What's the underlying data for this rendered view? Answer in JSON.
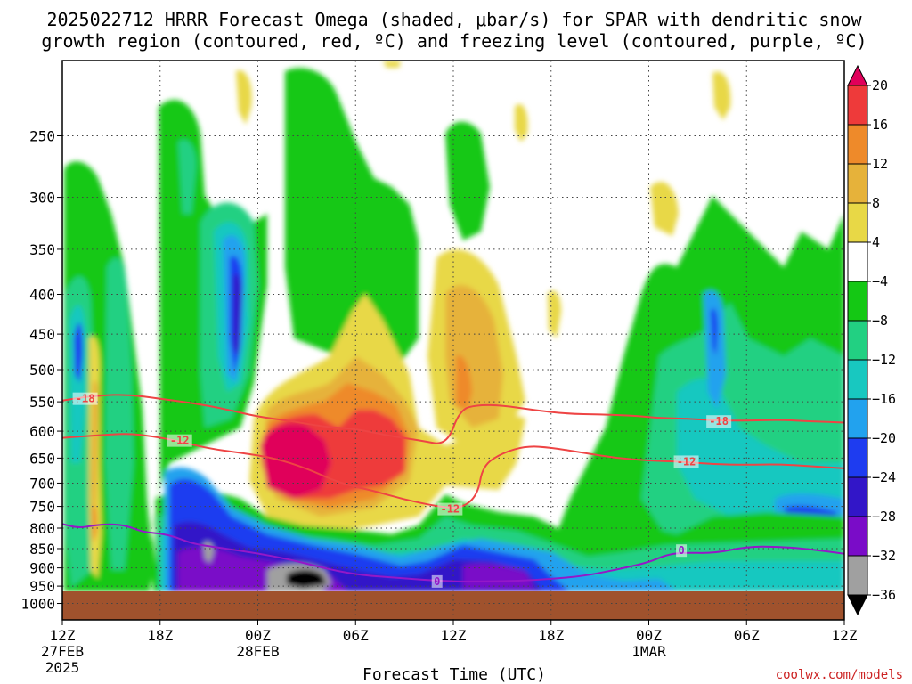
{
  "title_line1": "2025022712 HRRR Forecast Omega (shaded, μbar/s) for SPAR with dendritic snow",
  "title_line2": "growth region (contoured, red, ºC) and freezing level (contoured, purple, ºC)",
  "credit": "coolwx.com/models",
  "colors": {
    "dark_pink": "#e0005a",
    "red": "#ee3a3a",
    "orange": "#ee8a2a",
    "gold": "#e6b23a",
    "yellow": "#e8d846",
    "green": "#14c814",
    "mint": "#22d082",
    "teal": "#18c8c0",
    "sky": "#22a2ee",
    "blue": "#1e3cf0",
    "dark_blue": "#3216c8",
    "purple": "#7a0cc8",
    "grey": "#a0a0a0",
    "black": "#000000",
    "ground": "#a0522d",
    "contour_red": "#ee4444",
    "contour_purple": "#9418c8"
  },
  "chart_data": {
    "type": "heatmap",
    "title": "2025022712 HRRR Forecast Omega (shaded, μbar/s) for SPAR with dendritic snow growth region (contoured, red, ºC) and freezing level (contoured, purple, ºC)",
    "xlabel": "Forecast Time (UTC)",
    "ylabel": "",
    "x_ticks": [
      {
        "hour": 0,
        "label": "12Z",
        "sub1": "27FEB",
        "sub2": "2025"
      },
      {
        "hour": 6,
        "label": "18Z",
        "sub1": "",
        "sub2": ""
      },
      {
        "hour": 12,
        "label": "00Z",
        "sub1": "28FEB",
        "sub2": ""
      },
      {
        "hour": 18,
        "label": "06Z",
        "sub1": "",
        "sub2": ""
      },
      {
        "hour": 24,
        "label": "12Z",
        "sub1": "",
        "sub2": ""
      },
      {
        "hour": 30,
        "label": "18Z",
        "sub1": "",
        "sub2": ""
      },
      {
        "hour": 36,
        "label": "00Z",
        "sub1": "1MAR",
        "sub2": ""
      },
      {
        "hour": 42,
        "label": "06Z",
        "sub1": "",
        "sub2": ""
      },
      {
        "hour": 48,
        "label": "12Z",
        "sub1": "",
        "sub2": ""
      }
    ],
    "xlim": [
      0,
      48
    ],
    "y_ticks": [
      "250",
      "300",
      "350",
      "400",
      "450",
      "500",
      "550",
      "600",
      "650",
      "700",
      "750",
      "800",
      "850",
      "900",
      "950",
      "1000"
    ],
    "y_scale": "log",
    "ylim": [
      1050,
      200
    ],
    "grid": true,
    "colorbar": {
      "unit": "μbar/s",
      "tick_labels": [
        "20",
        "16",
        "12",
        "8",
        "4",
        "−4",
        "−8",
        "−12",
        "−16",
        "−20",
        "−24",
        "−28",
        "−32",
        "−36"
      ],
      "bins": [
        {
          "from": 20,
          "to": null,
          "color": "#e0005a"
        },
        {
          "from": 16,
          "to": 20,
          "color": "#ee3a3a"
        },
        {
          "from": 12,
          "to": 16,
          "color": "#ee8a2a"
        },
        {
          "from": 8,
          "to": 12,
          "color": "#e6b23a"
        },
        {
          "from": 4,
          "to": 8,
          "color": "#e8d846"
        },
        {
          "from": -4,
          "to": 4,
          "color": "#ffffff"
        },
        {
          "from": -8,
          "to": -4,
          "color": "#14c814"
        },
        {
          "from": -12,
          "to": -8,
          "color": "#22d082"
        },
        {
          "from": -16,
          "to": -12,
          "color": "#18c8c0"
        },
        {
          "from": -20,
          "to": -16,
          "color": "#22a2ee"
        },
        {
          "from": -24,
          "to": -20,
          "color": "#1e3cf0"
        },
        {
          "from": -28,
          "to": -24,
          "color": "#3216c8"
        },
        {
          "from": -32,
          "to": -28,
          "color": "#7a0cc8"
        },
        {
          "from": -36,
          "to": -32,
          "color": "#a0a0a0"
        },
        {
          "from": null,
          "to": -36,
          "color": "#000000"
        }
      ]
    },
    "contours": [
      {
        "value": "-18",
        "color": "#ee4444",
        "label_at": [
          [
            1.4,
            545
          ],
          [
            40.3,
            583
          ]
        ],
        "points": [
          [
            0,
            548
          ],
          [
            2,
            540
          ],
          [
            4,
            538
          ],
          [
            6,
            545
          ],
          [
            8,
            552
          ],
          [
            10,
            562
          ],
          [
            12,
            575
          ],
          [
            14,
            582
          ],
          [
            16,
            592
          ],
          [
            18,
            596
          ],
          [
            20,
            608
          ],
          [
            22,
            617
          ],
          [
            23.6,
            626
          ],
          [
            24.4,
            563
          ],
          [
            25.5,
            555
          ],
          [
            27,
            556
          ],
          [
            29,
            564
          ],
          [
            31,
            570
          ],
          [
            33,
            571
          ],
          [
            35,
            573
          ],
          [
            36.5,
            577
          ],
          [
            38,
            578
          ],
          [
            40,
            581
          ],
          [
            42,
            582
          ],
          [
            44,
            580
          ],
          [
            46,
            583
          ],
          [
            48,
            585
          ]
        ]
      },
      {
        "value": "-12",
        "color": "#ee4444",
        "label_at": [
          [
            7.2,
            617
          ],
          [
            23.8,
            756
          ],
          [
            38.3,
            657
          ]
        ],
        "points": [
          [
            0,
            612
          ],
          [
            2,
            608
          ],
          [
            4,
            604
          ],
          [
            5.5,
            609
          ],
          [
            7,
            617
          ],
          [
            9,
            632
          ],
          [
            11,
            640
          ],
          [
            13,
            650
          ],
          [
            15,
            670
          ],
          [
            17,
            700
          ],
          [
            19,
            715
          ],
          [
            21,
            735
          ],
          [
            23,
            750
          ],
          [
            24.5,
            755
          ],
          [
            25.5,
            725
          ],
          [
            25.8,
            665
          ],
          [
            27,
            640
          ],
          [
            28.5,
            627
          ],
          [
            30,
            630
          ],
          [
            32,
            640
          ],
          [
            34,
            650
          ],
          [
            36,
            655
          ],
          [
            38,
            657
          ],
          [
            40,
            662
          ],
          [
            42,
            663
          ],
          [
            44,
            662
          ],
          [
            46,
            666
          ],
          [
            48,
            670
          ]
        ]
      },
      {
        "value": "0",
        "color": "#9418c8",
        "label_at": [
          [
            23.0,
            937
          ],
          [
            38.0,
            855
          ]
        ],
        "points": [
          [
            0,
            790
          ],
          [
            1,
            800
          ],
          [
            2,
            793
          ],
          [
            3,
            790
          ],
          [
            4,
            795
          ],
          [
            5,
            810
          ],
          [
            6,
            812
          ],
          [
            7,
            822
          ],
          [
            8,
            838
          ],
          [
            10,
            850
          ],
          [
            12,
            862
          ],
          [
            14,
            878
          ],
          [
            16,
            900
          ],
          [
            18,
            918
          ],
          [
            20,
            925
          ],
          [
            22,
            932
          ],
          [
            24,
            937
          ],
          [
            26,
            937
          ],
          [
            28,
            935
          ],
          [
            30,
            930
          ],
          [
            32,
            922
          ],
          [
            34,
            905
          ],
          [
            36,
            885
          ],
          [
            37,
            867
          ],
          [
            38,
            860
          ],
          [
            40,
            862
          ],
          [
            42,
            845
          ],
          [
            44,
            845
          ],
          [
            46,
            852
          ],
          [
            48,
            863
          ]
        ]
      }
    ]
  }
}
